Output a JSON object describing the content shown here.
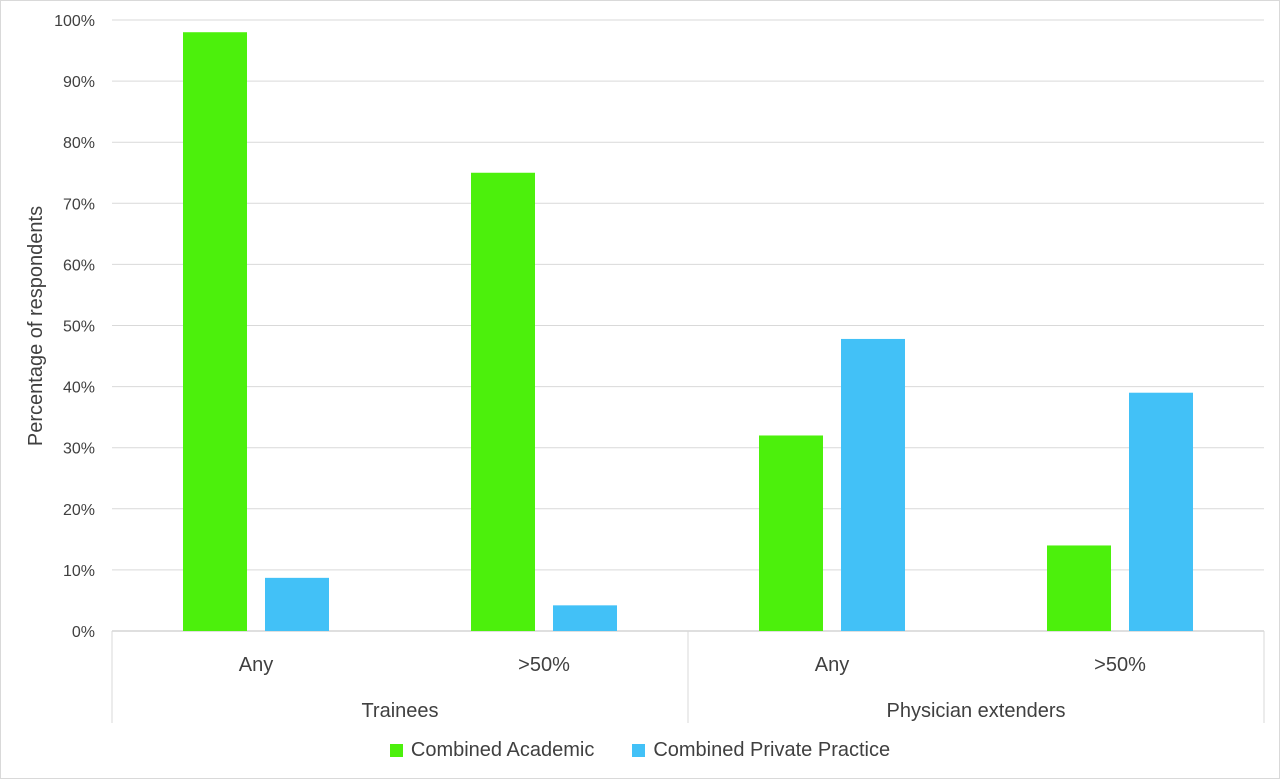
{
  "chart_data": {
    "type": "bar",
    "title": "",
    "ylabel": "Percentage of respondents",
    "ylim": [
      0,
      100
    ],
    "yticks": [
      0,
      10,
      20,
      30,
      40,
      50,
      60,
      70,
      80,
      90,
      100
    ],
    "ytick_labels": [
      "0%",
      "10%",
      "20%",
      "30%",
      "40%",
      "50%",
      "60%",
      "70%",
      "80%",
      "90%",
      "100%"
    ],
    "grid": true,
    "legend_position": "bottom",
    "groups": [
      {
        "label": "Trainees",
        "categories": [
          "Any",
          ">50%"
        ]
      },
      {
        "label": "Physician extenders",
        "categories": [
          "Any",
          ">50%"
        ]
      }
    ],
    "categories": [
      "Any",
      ">50%",
      "Any",
      ">50%"
    ],
    "series": [
      {
        "name": "Combined Academic",
        "color": "#4cf00c",
        "values": [
          98,
          75,
          32,
          14
        ]
      },
      {
        "name": "Combined Private Practice",
        "color": "#42c1f7",
        "values": [
          8.7,
          4.2,
          47.8,
          39
        ]
      }
    ]
  }
}
